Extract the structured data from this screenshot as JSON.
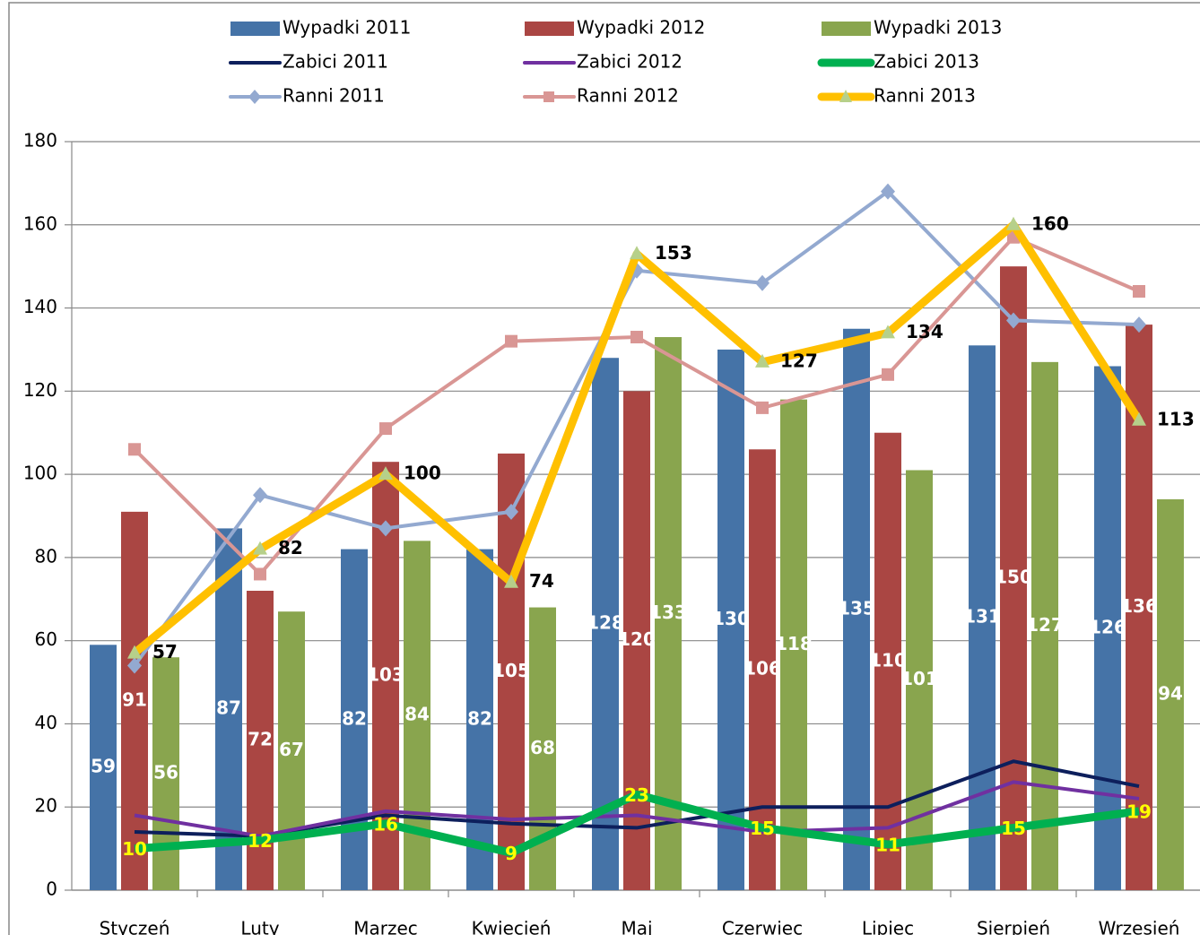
{
  "chart_data": {
    "type": "combo",
    "categories": [
      "Styczeń",
      "Luty",
      "Marzec",
      "Kwiecień",
      "Maj",
      "Czerwiec",
      "Lipiec",
      "Sierpień",
      "Wrzesień"
    ],
    "ylim": [
      0,
      180
    ],
    "yticks": [
      0,
      20,
      40,
      60,
      80,
      100,
      120,
      140,
      160,
      180
    ],
    "grid": true,
    "series": [
      {
        "name": "Wypadki 2011",
        "type": "bar",
        "color": "#4573a7",
        "data_labels": true,
        "label_color": "#ffffff",
        "values": [
          59,
          87,
          82,
          82,
          128,
          130,
          135,
          131,
          126
        ]
      },
      {
        "name": "Wypadki 2012",
        "type": "bar",
        "color": "#aa4643",
        "data_labels": true,
        "label_color": "#ffffff",
        "values": [
          91,
          72,
          103,
          105,
          120,
          106,
          110,
          150,
          136
        ]
      },
      {
        "name": "Wypadki 2013",
        "type": "bar",
        "color": "#89a54e",
        "data_labels": true,
        "label_color": "#ffffff",
        "values": [
          56,
          67,
          84,
          68,
          133,
          118,
          101,
          127,
          94
        ]
      },
      {
        "name": "Zabici 2011",
        "type": "line",
        "color": "#0d1f5c",
        "line_width": 4,
        "values": [
          14,
          13,
          18,
          16,
          15,
          20,
          20,
          31,
          25
        ]
      },
      {
        "name": "Zabici 2012",
        "type": "line",
        "color": "#7030a0",
        "line_width": 4,
        "values": [
          18,
          13,
          19,
          17,
          18,
          14,
          15,
          26,
          22
        ]
      },
      {
        "name": "Zabici 2013",
        "type": "line",
        "color": "#00b050",
        "line_width": 9,
        "data_labels": true,
        "label_color": "#ffff00",
        "values": [
          10,
          12,
          16,
          9,
          23,
          15,
          11,
          15,
          19
        ]
      },
      {
        "name": "Ranni 2011",
        "type": "line",
        "color": "#93a9d0",
        "line_width": 4,
        "marker": "diamond",
        "marker_color": "#93a9d0",
        "values": [
          54,
          95,
          87,
          91,
          149,
          146,
          168,
          137,
          136
        ]
      },
      {
        "name": "Ranni 2012",
        "type": "line",
        "color": "#d99694",
        "line_width": 4,
        "marker": "square",
        "marker_color": "#d99694",
        "values": [
          106,
          76,
          111,
          132,
          133,
          116,
          124,
          157,
          144
        ]
      },
      {
        "name": "Ranni 2013",
        "type": "line",
        "color": "#ffc000",
        "line_width": 9,
        "marker": "triangle",
        "marker_color": "#b6d08a",
        "data_labels": true,
        "label_color": "#000000",
        "label_side": "right",
        "values": [
          57,
          82,
          100,
          74,
          153,
          127,
          134,
          160,
          113
        ]
      }
    ]
  }
}
